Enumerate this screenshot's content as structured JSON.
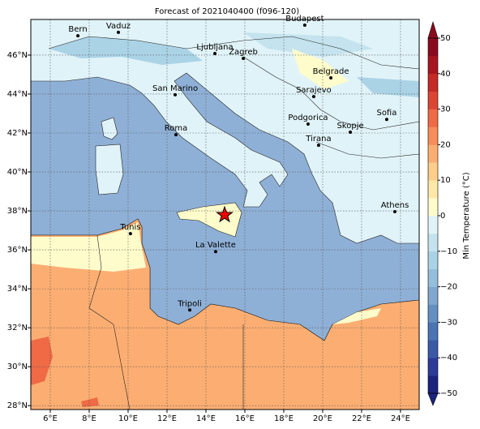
{
  "title": "Forecast of 2021040400 (f096-120)",
  "map": {
    "lon_range": [
      5,
      24.96
    ],
    "lat_range": [
      27.8,
      47.83
    ],
    "lon_ticks": [
      {
        "value": 6,
        "label": "6°E"
      },
      {
        "value": 8,
        "label": "8°E"
      },
      {
        "value": 10,
        "label": "10°E"
      },
      {
        "value": 12,
        "label": "12°E"
      },
      {
        "value": 14,
        "label": "14°E"
      },
      {
        "value": 16,
        "label": "16°E"
      },
      {
        "value": 18,
        "label": "18°E"
      },
      {
        "value": 20,
        "label": "20°E"
      },
      {
        "value": 22,
        "label": "22°E"
      },
      {
        "value": 24,
        "label": "24°E"
      }
    ],
    "lat_ticks": [
      {
        "value": 28,
        "label": "28°N"
      },
      {
        "value": 30,
        "label": "30°N"
      },
      {
        "value": 32,
        "label": "32°N"
      },
      {
        "value": 34,
        "label": "34°N"
      },
      {
        "value": 36,
        "label": "36°N"
      },
      {
        "value": 38,
        "label": "38°N"
      },
      {
        "value": 40,
        "label": "40°N"
      },
      {
        "value": 42,
        "label": "42°N"
      },
      {
        "value": 44,
        "label": "44°N"
      },
      {
        "value": 46,
        "label": "46°N"
      }
    ],
    "cities": [
      {
        "name": "Bern",
        "lon": 7.42,
        "lat": 46.99
      },
      {
        "name": "Vaduz",
        "lon": 9.5,
        "lat": 47.17
      },
      {
        "name": "Budapest",
        "lon": 19.08,
        "lat": 47.54
      },
      {
        "name": "Ljubljana",
        "lon": 14.46,
        "lat": 46.08
      },
      {
        "name": "Zagreb",
        "lon": 15.92,
        "lat": 45.83
      },
      {
        "name": "Belgrade",
        "lon": 20.42,
        "lat": 44.83
      },
      {
        "name": "San Marino",
        "lon": 12.42,
        "lat": 43.96
      },
      {
        "name": "Sarajevo",
        "lon": 19.54,
        "lat": 43.87
      },
      {
        "name": "Sofia",
        "lon": 23.29,
        "lat": 42.7
      },
      {
        "name": "Podgorica",
        "lon": 19.25,
        "lat": 42.46
      },
      {
        "name": "Skopje",
        "lon": 21.42,
        "lat": 42.04
      },
      {
        "name": "Roma",
        "lon": 12.46,
        "lat": 41.91
      },
      {
        "name": "Tirana",
        "lon": 19.79,
        "lat": 41.37
      },
      {
        "name": "Athens",
        "lon": 23.71,
        "lat": 37.96
      },
      {
        "name": "Tunis",
        "lon": 10.12,
        "lat": 36.83
      },
      {
        "name": "La Valette",
        "lon": 14.5,
        "lat": 35.91
      },
      {
        "name": "Tripoli",
        "lon": 13.17,
        "lat": 32.91
      }
    ],
    "forecast_point": {
      "lon": 14.96,
      "lat": 37.79
    }
  },
  "colorbar": {
    "label": "Min Temperature (°C)",
    "limits": [
      -50,
      50
    ],
    "colors": [
      "#1a237e",
      "#2c3a9a",
      "#3a5aa8",
      "#4a74b4",
      "#6390c1",
      "#7fa7cf",
      "#93bedc",
      "#abd3e6",
      "#c4e3ee",
      "#e0f3f8",
      "#fefccb",
      "#fee8a8",
      "#fdcd8a",
      "#fcae72",
      "#f88d5a",
      "#ef6a45",
      "#dd4533",
      "#c62a26",
      "#a8141f",
      "#8b0a1e"
    ],
    "ticks": [
      {
        "value": -50,
        "label": "−50"
      },
      {
        "value": -40,
        "label": "−40"
      },
      {
        "value": -30,
        "label": "−30"
      },
      {
        "value": -20,
        "label": "−20"
      },
      {
        "value": -10,
        "label": "−10"
      },
      0,
      10,
      20,
      30,
      40,
      50
    ]
  }
}
